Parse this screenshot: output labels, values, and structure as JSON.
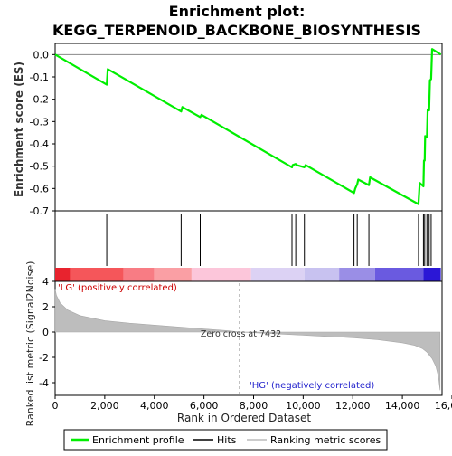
{
  "chart_data": {
    "type": "line",
    "title": "Enrichment plot:",
    "subtitle": "KEGG_TERPENOID_BACKBONE_BIOSYNTHESIS",
    "xlabel": "Rank in Ordered Dataset",
    "ylabel_top": "Enrichment score (ES)",
    "ylabel_bottom": "Ranked list metric (Signal2Noise)",
    "xlim": [
      0,
      15600
    ],
    "ylim_es": [
      -0.7,
      0.05
    ],
    "ylim_metric": [
      -5,
      4
    ],
    "x_ticks": [
      0,
      2000,
      4000,
      6000,
      8000,
      10000,
      12000,
      14000,
      16000
    ],
    "x_tick_labels": [
      "0",
      "2,000",
      "4,000",
      "6,000",
      "8,000",
      "10,000",
      "12,000",
      "14,000",
      "16,000"
    ],
    "es_ticks": [
      0.0,
      -0.1,
      -0.2,
      -0.3,
      -0.4,
      -0.5,
      -0.6,
      -0.7
    ],
    "es_tick_labels": [
      "0.0",
      "-0.1",
      "-0.2",
      "-0.3",
      "-0.4",
      "-0.5",
      "-0.6",
      "-0.7"
    ],
    "metric_ticks": [
      4,
      2,
      0,
      -2,
      -4
    ],
    "metric_tick_labels": [
      "4",
      "2",
      "0",
      "-2",
      "-4"
    ],
    "series": [
      {
        "name": "Enrichment profile",
        "color": "#00ee00",
        "x": [
          0,
          2080,
          2120,
          5080,
          5130,
          5850,
          5900,
          9550,
          9580,
          9700,
          9740,
          10050,
          10100,
          12050,
          12100,
          12180,
          12220,
          12650,
          12700,
          14650,
          14700,
          14850,
          14870,
          14900,
          14920,
          14990,
          15020,
          15080,
          15110,
          15160,
          15200,
          15550
        ],
        "y": [
          0.0,
          -0.135,
          -0.065,
          -0.255,
          -0.235,
          -0.28,
          -0.27,
          -0.505,
          -0.495,
          -0.49,
          -0.495,
          -0.505,
          -0.495,
          -0.62,
          -0.6,
          -0.58,
          -0.56,
          -0.585,
          -0.55,
          -0.67,
          -0.575,
          -0.59,
          -0.475,
          -0.475,
          -0.365,
          -0.37,
          -0.245,
          -0.25,
          -0.115,
          -0.11,
          0.025,
          0.0
        ]
      }
    ],
    "hits": [
      2080,
      5080,
      5850,
      9550,
      9700,
      10050,
      12050,
      12180,
      12650,
      14650,
      14850,
      14900,
      14990,
      15080,
      15160
    ],
    "zero_cross": 7432,
    "zero_cross_label": "Zero cross at 7432",
    "pos_label": "'LG' (positively correlated)",
    "neg_label": "'HG' (negatively correlated)",
    "metric_profile": {
      "x": [
        0,
        50,
        200,
        500,
        1000,
        2000,
        3000,
        4000,
        5000,
        6000,
        7000,
        7432,
        8000,
        9000,
        10000,
        11000,
        12000,
        13000,
        14000,
        14500,
        14800,
        15000,
        15200,
        15350,
        15450,
        15520
      ],
      "y": [
        3.4,
        2.9,
        2.3,
        1.75,
        1.3,
        0.9,
        0.7,
        0.55,
        0.4,
        0.25,
        0.1,
        0.0,
        -0.05,
        -0.15,
        -0.25,
        -0.35,
        -0.45,
        -0.6,
        -0.85,
        -1.05,
        -1.3,
        -1.6,
        -2.1,
        -2.7,
        -3.5,
        -4.6
      ]
    },
    "colorbar_segments": [
      {
        "start": 0,
        "end": 600,
        "color": "#e8232e"
      },
      {
        "start": 600,
        "end": 2750,
        "color": "#f5565a"
      },
      {
        "start": 2750,
        "end": 4000,
        "color": "#f87c84"
      },
      {
        "start": 4000,
        "end": 5500,
        "color": "#fa9fa4"
      },
      {
        "start": 5500,
        "end": 7900,
        "color": "#fcc6da"
      },
      {
        "start": 7900,
        "end": 10050,
        "color": "#dcd2f4"
      },
      {
        "start": 10050,
        "end": 11450,
        "color": "#c8c2f0"
      },
      {
        "start": 11450,
        "end": 12900,
        "color": "#9a8ee6"
      },
      {
        "start": 12900,
        "end": 14850,
        "color": "#6a5ae0"
      },
      {
        "start": 14850,
        "end": 15550,
        "color": "#2b17d6"
      }
    ],
    "legend": [
      {
        "label": "Enrichment profile",
        "color": "#00ee00"
      },
      {
        "label": "Hits",
        "color": "#000000"
      },
      {
        "label": "Ranking metric scores",
        "color": "#bbbbbb"
      }
    ],
    "legend_placement": "bottom"
  }
}
